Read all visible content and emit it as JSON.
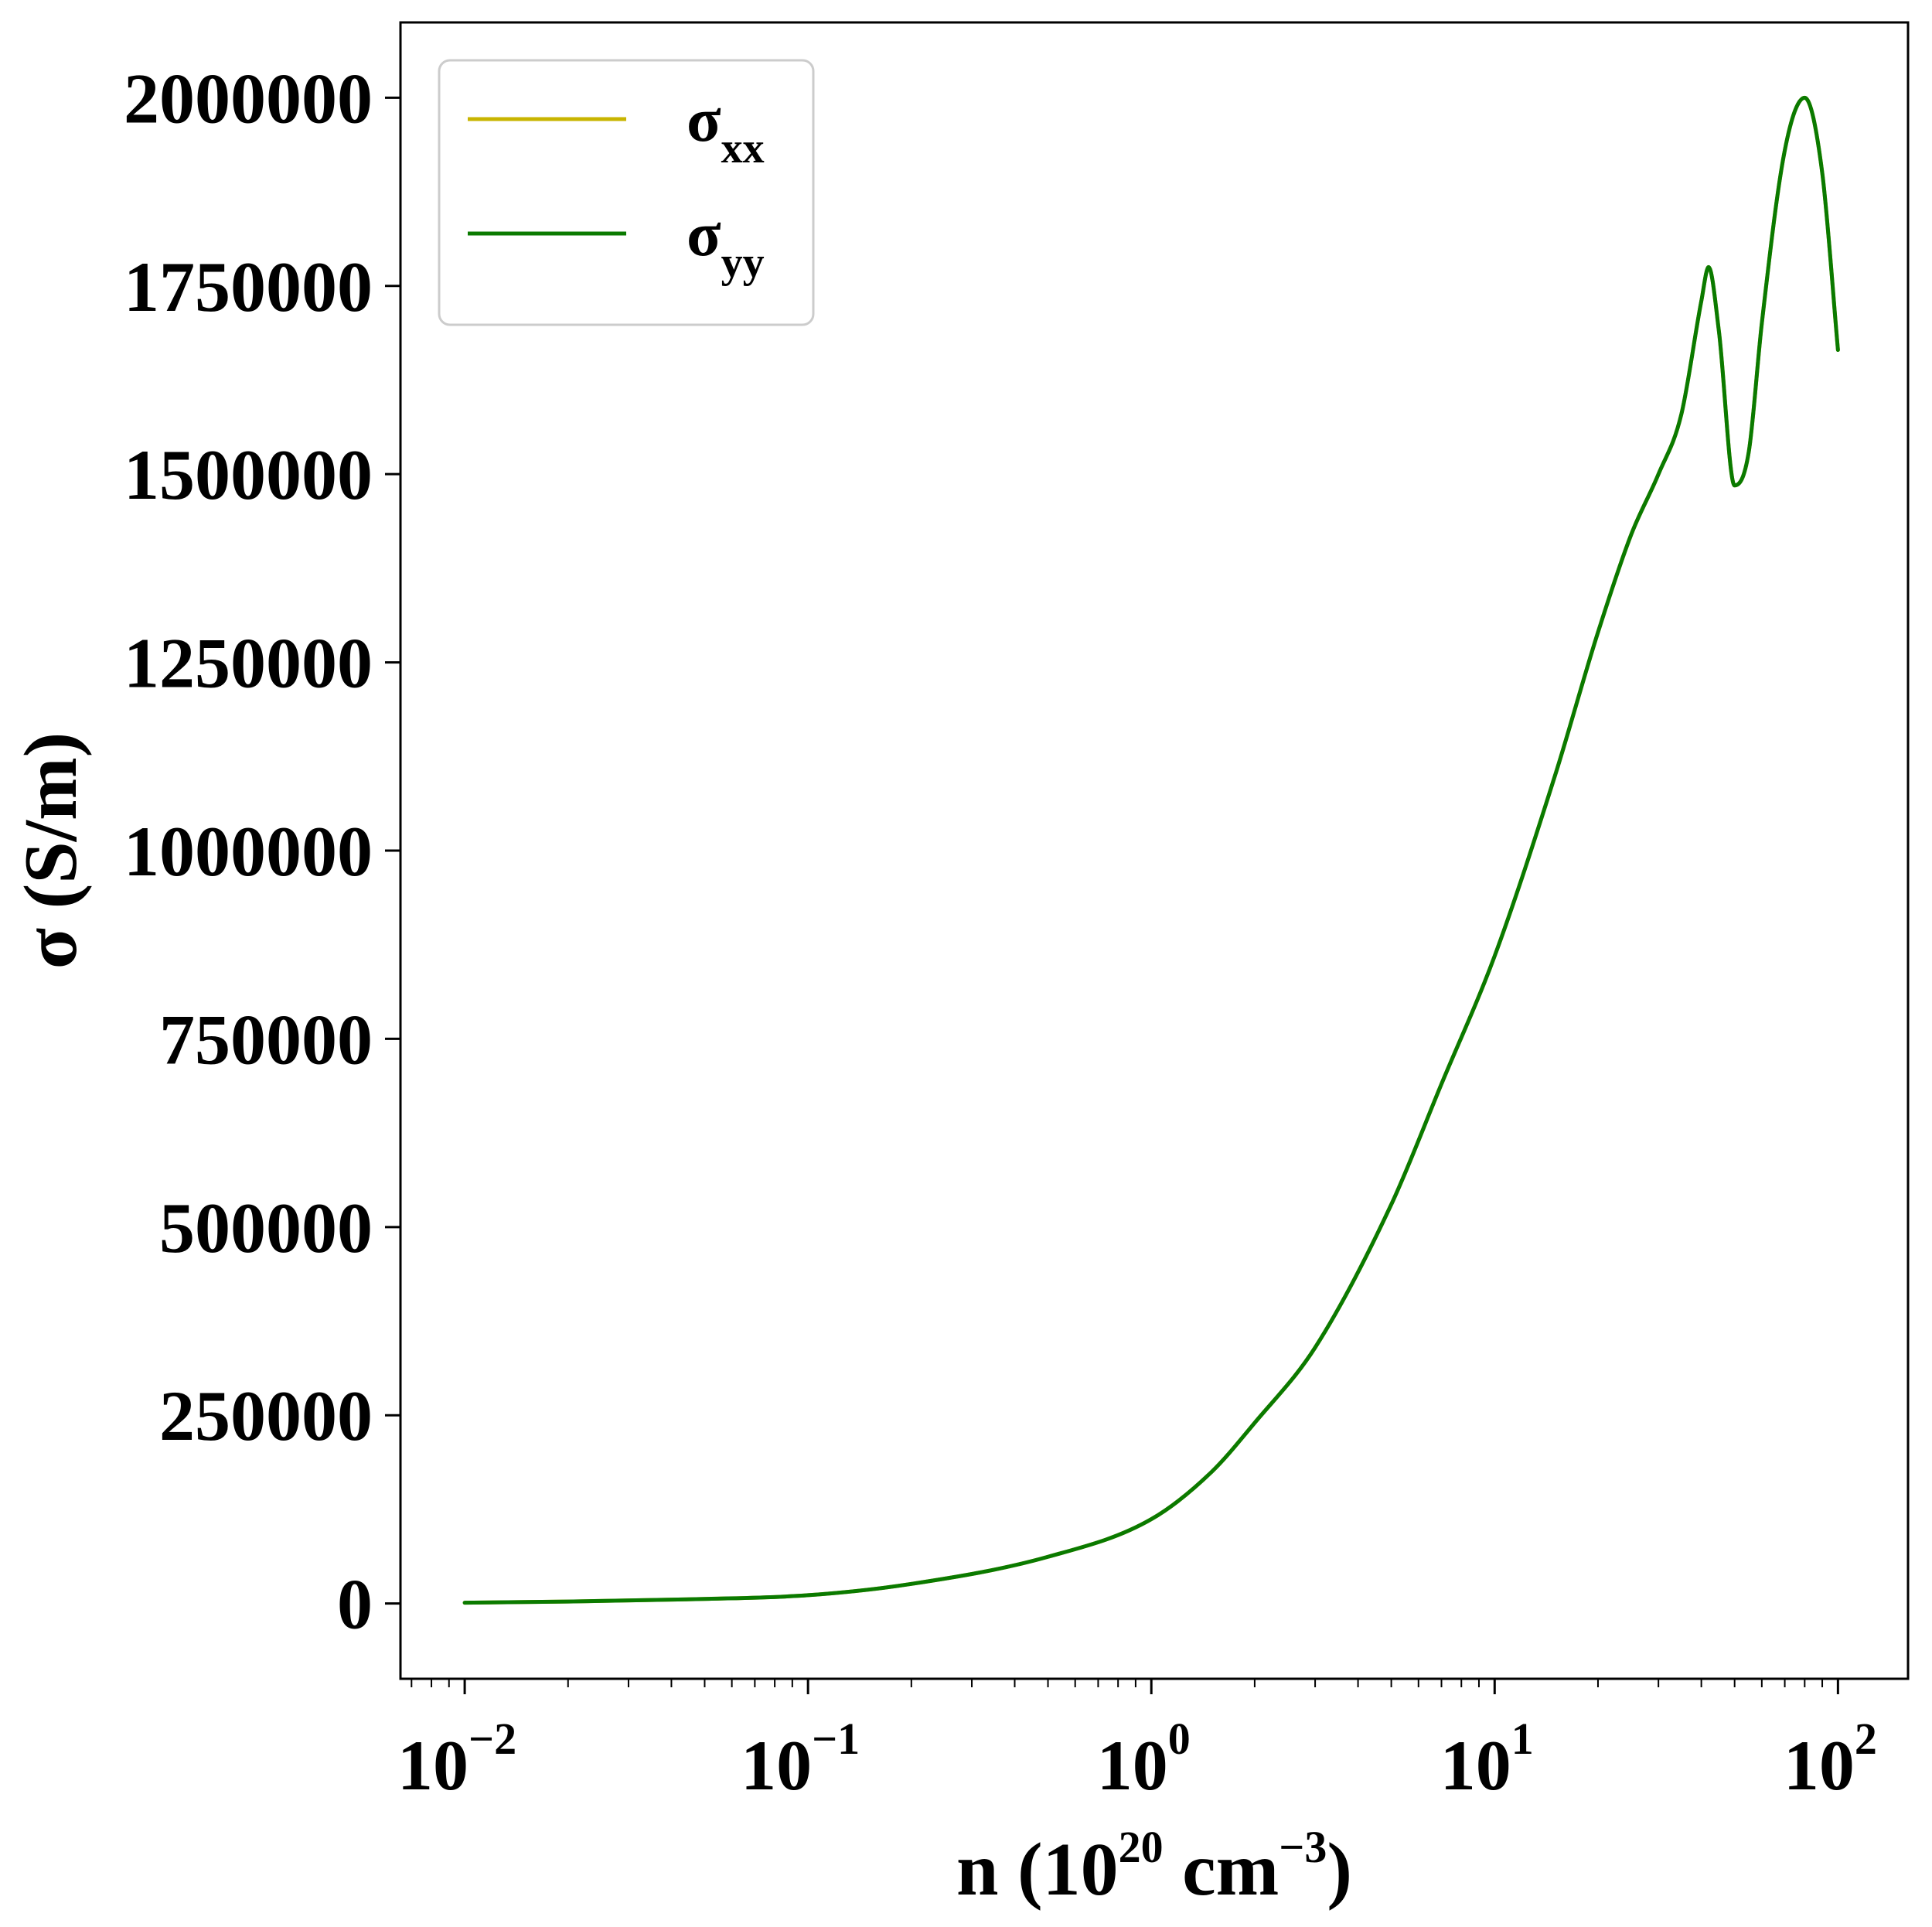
{
  "chart_data": {
    "type": "line",
    "xscale": "log",
    "xlim": [
      0.0065,
      160
    ],
    "ylim": [
      -100000,
      2100000
    ],
    "xlabel": {
      "prefix": "n (10",
      "exp": "20",
      "mid": " cm",
      "exp2": "−3",
      "suffix": ")"
    },
    "ylabel": "σ (S/m)",
    "x_ticks": [
      {
        "value": 0.01,
        "base": "10",
        "exp": "−2"
      },
      {
        "value": 0.1,
        "base": "10",
        "exp": "−1"
      },
      {
        "value": 1,
        "base": "10",
        "exp": "0"
      },
      {
        "value": 10,
        "base": "10",
        "exp": "1"
      },
      {
        "value": 100,
        "base": "10",
        "exp": "2"
      }
    ],
    "y_ticks": [
      {
        "value": 0,
        "label": "0"
      },
      {
        "value": 250000,
        "label": "250000"
      },
      {
        "value": 500000,
        "label": "500000"
      },
      {
        "value": 750000,
        "label": "750000"
      },
      {
        "value": 1000000,
        "label": "1000000"
      },
      {
        "value": 1250000,
        "label": "1250000"
      },
      {
        "value": 1500000,
        "label": "1500000"
      },
      {
        "value": 1750000,
        "label": "1750000"
      },
      {
        "value": 2000000,
        "label": "2000000"
      }
    ],
    "legend_position": "top-left",
    "series": [
      {
        "name": "σxx",
        "label_main": "σ",
        "label_sub": "xx",
        "color": "#c8b400",
        "x": [
          0.01,
          0.02,
          0.05,
          0.1,
          0.2,
          0.5,
          1,
          1.5,
          2,
          3,
          5,
          7,
          10,
          15,
          20,
          25,
          30,
          35,
          40,
          42,
          45,
          50,
          55,
          60,
          70,
          80,
          90,
          100
        ],
        "y": [
          1000,
          2600,
          6000,
          11000,
          26000,
          62000,
          112000,
          175000,
          240000,
          340000,
          530000,
          690000,
          860000,
          1100000,
          1290000,
          1420000,
          1500000,
          1580000,
          1730000,
          1775000,
          1690000,
          1485000,
          1530000,
          1700000,
          1930000,
          2000000,
          1900000,
          1665000
        ]
      },
      {
        "name": "σyy",
        "label_main": "σ",
        "label_sub": "yy",
        "color": "#0a7a00",
        "x": [
          0.01,
          0.02,
          0.05,
          0.1,
          0.2,
          0.5,
          1,
          1.5,
          2,
          3,
          5,
          7,
          10,
          15,
          20,
          25,
          30,
          35,
          40,
          42,
          45,
          50,
          55,
          60,
          70,
          80,
          90,
          100
        ],
        "y": [
          1000,
          2600,
          6000,
          11000,
          26000,
          62000,
          112000,
          175000,
          240000,
          340000,
          530000,
          690000,
          860000,
          1100000,
          1290000,
          1420000,
          1500000,
          1580000,
          1730000,
          1775000,
          1690000,
          1485000,
          1530000,
          1700000,
          1930000,
          2000000,
          1900000,
          1665000
        ]
      }
    ]
  }
}
